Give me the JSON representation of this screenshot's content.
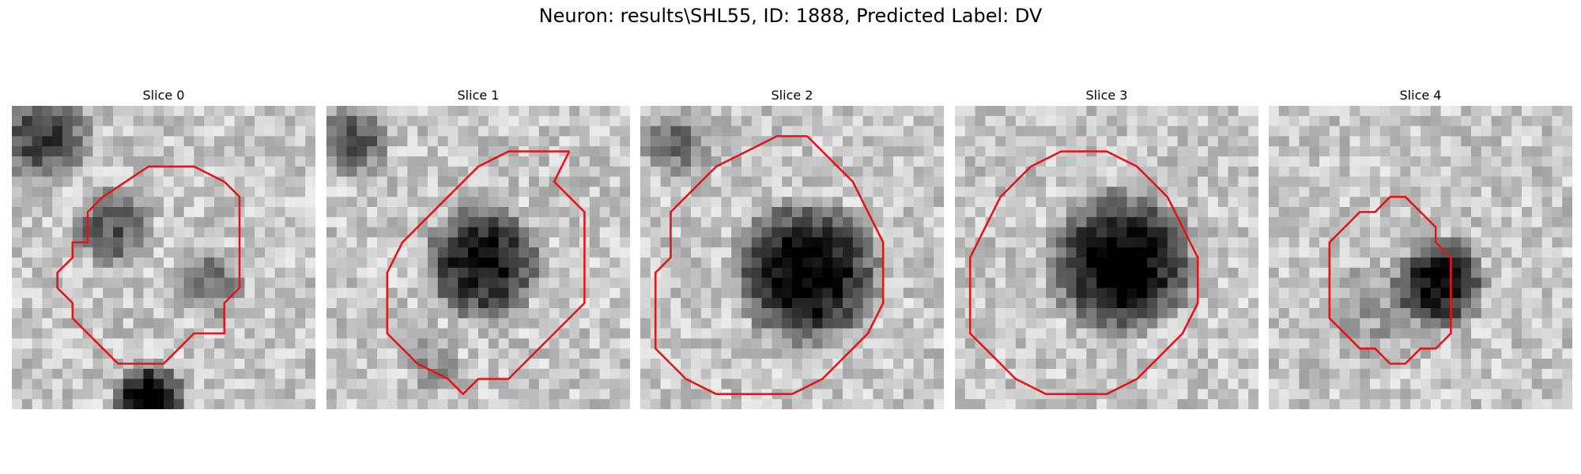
{
  "figure": {
    "title": "Neuron: results\\SHL55, ID: 1888, Predicted Label: DV"
  },
  "colors": {
    "contour": "#e4141b",
    "background": "#ffffff"
  },
  "panels": [
    {
      "title": "Slice 0",
      "contour": [
        [
          14,
          5
        ],
        [
          12,
          4
        ],
        [
          9,
          4
        ],
        [
          6,
          6
        ],
        [
          5,
          7
        ],
        [
          5,
          9
        ],
        [
          4,
          9
        ],
        [
          4,
          10
        ],
        [
          3,
          11
        ],
        [
          3,
          12
        ],
        [
          4,
          13
        ],
        [
          4,
          14
        ],
        [
          5,
          15
        ],
        [
          6,
          16
        ],
        [
          7,
          17
        ],
        [
          8,
          17
        ],
        [
          10,
          17
        ],
        [
          11,
          16
        ],
        [
          12,
          15
        ],
        [
          14,
          15
        ],
        [
          14,
          13
        ],
        [
          15,
          12
        ],
        [
          15,
          6
        ],
        [
          14,
          5
        ]
      ]
    },
    {
      "title": "Slice 1",
      "contour": [
        [
          16,
          3
        ],
        [
          12,
          3
        ],
        [
          10,
          4
        ],
        [
          9,
          5
        ],
        [
          8,
          6
        ],
        [
          7,
          7
        ],
        [
          5,
          9
        ],
        [
          4,
          11
        ],
        [
          4,
          15
        ],
        [
          5,
          16
        ],
        [
          6,
          17
        ],
        [
          8,
          18
        ],
        [
          9,
          19
        ],
        [
          10,
          18
        ],
        [
          12,
          18
        ],
        [
          13,
          17
        ],
        [
          14,
          16
        ],
        [
          15,
          15
        ],
        [
          16,
          14
        ],
        [
          17,
          13
        ],
        [
          17,
          7
        ],
        [
          16,
          6
        ],
        [
          15,
          5
        ],
        [
          16,
          3
        ]
      ]
    },
    {
      "title": "Slice 2",
      "contour": [
        [
          11,
          2
        ],
        [
          9,
          2
        ],
        [
          7,
          3
        ],
        [
          5,
          4
        ],
        [
          4,
          5
        ],
        [
          3,
          6
        ],
        [
          2,
          7
        ],
        [
          2,
          10
        ],
        [
          1,
          11
        ],
        [
          1,
          16
        ],
        [
          2,
          17
        ],
        [
          3,
          18
        ],
        [
          5,
          19
        ],
        [
          7,
          19
        ],
        [
          10,
          19
        ],
        [
          12,
          18
        ],
        [
          13,
          17
        ],
        [
          14,
          16
        ],
        [
          15,
          15
        ],
        [
          16,
          13
        ],
        [
          16,
          9
        ],
        [
          15,
          7
        ],
        [
          14,
          5
        ],
        [
          13,
          4
        ],
        [
          12,
          3
        ],
        [
          11,
          2
        ]
      ]
    },
    {
      "title": "Slice 3",
      "contour": [
        [
          9,
          3
        ],
        [
          7,
          3
        ],
        [
          5,
          4
        ],
        [
          4,
          5
        ],
        [
          3,
          6
        ],
        [
          2,
          8
        ],
        [
          1,
          10
        ],
        [
          1,
          15
        ],
        [
          2,
          16
        ],
        [
          3,
          17
        ],
        [
          4,
          18
        ],
        [
          6,
          19
        ],
        [
          8,
          19
        ],
        [
          10,
          19
        ],
        [
          12,
          18
        ],
        [
          13,
          17
        ],
        [
          14,
          16
        ],
        [
          15,
          15
        ],
        [
          16,
          13
        ],
        [
          16,
          10
        ],
        [
          15,
          8
        ],
        [
          14,
          6
        ],
        [
          13,
          5
        ],
        [
          12,
          4
        ],
        [
          10,
          3
        ],
        [
          9,
          3
        ]
      ]
    },
    {
      "title": "Slice 4",
      "contour": [
        [
          10,
          7
        ],
        [
          9,
          6
        ],
        [
          8,
          6
        ],
        [
          7,
          7
        ],
        [
          6,
          7
        ],
        [
          5,
          8
        ],
        [
          4,
          9
        ],
        [
          4,
          10
        ],
        [
          4,
          13
        ],
        [
          4,
          14
        ],
        [
          5,
          15
        ],
        [
          6,
          16
        ],
        [
          7,
          16
        ],
        [
          8,
          17
        ],
        [
          9,
          17
        ],
        [
          10,
          16
        ],
        [
          11,
          16
        ],
        [
          12,
          15
        ],
        [
          12,
          14
        ],
        [
          12,
          10
        ],
        [
          11,
          9
        ],
        [
          11,
          8
        ],
        [
          10,
          7
        ]
      ]
    }
  ]
}
